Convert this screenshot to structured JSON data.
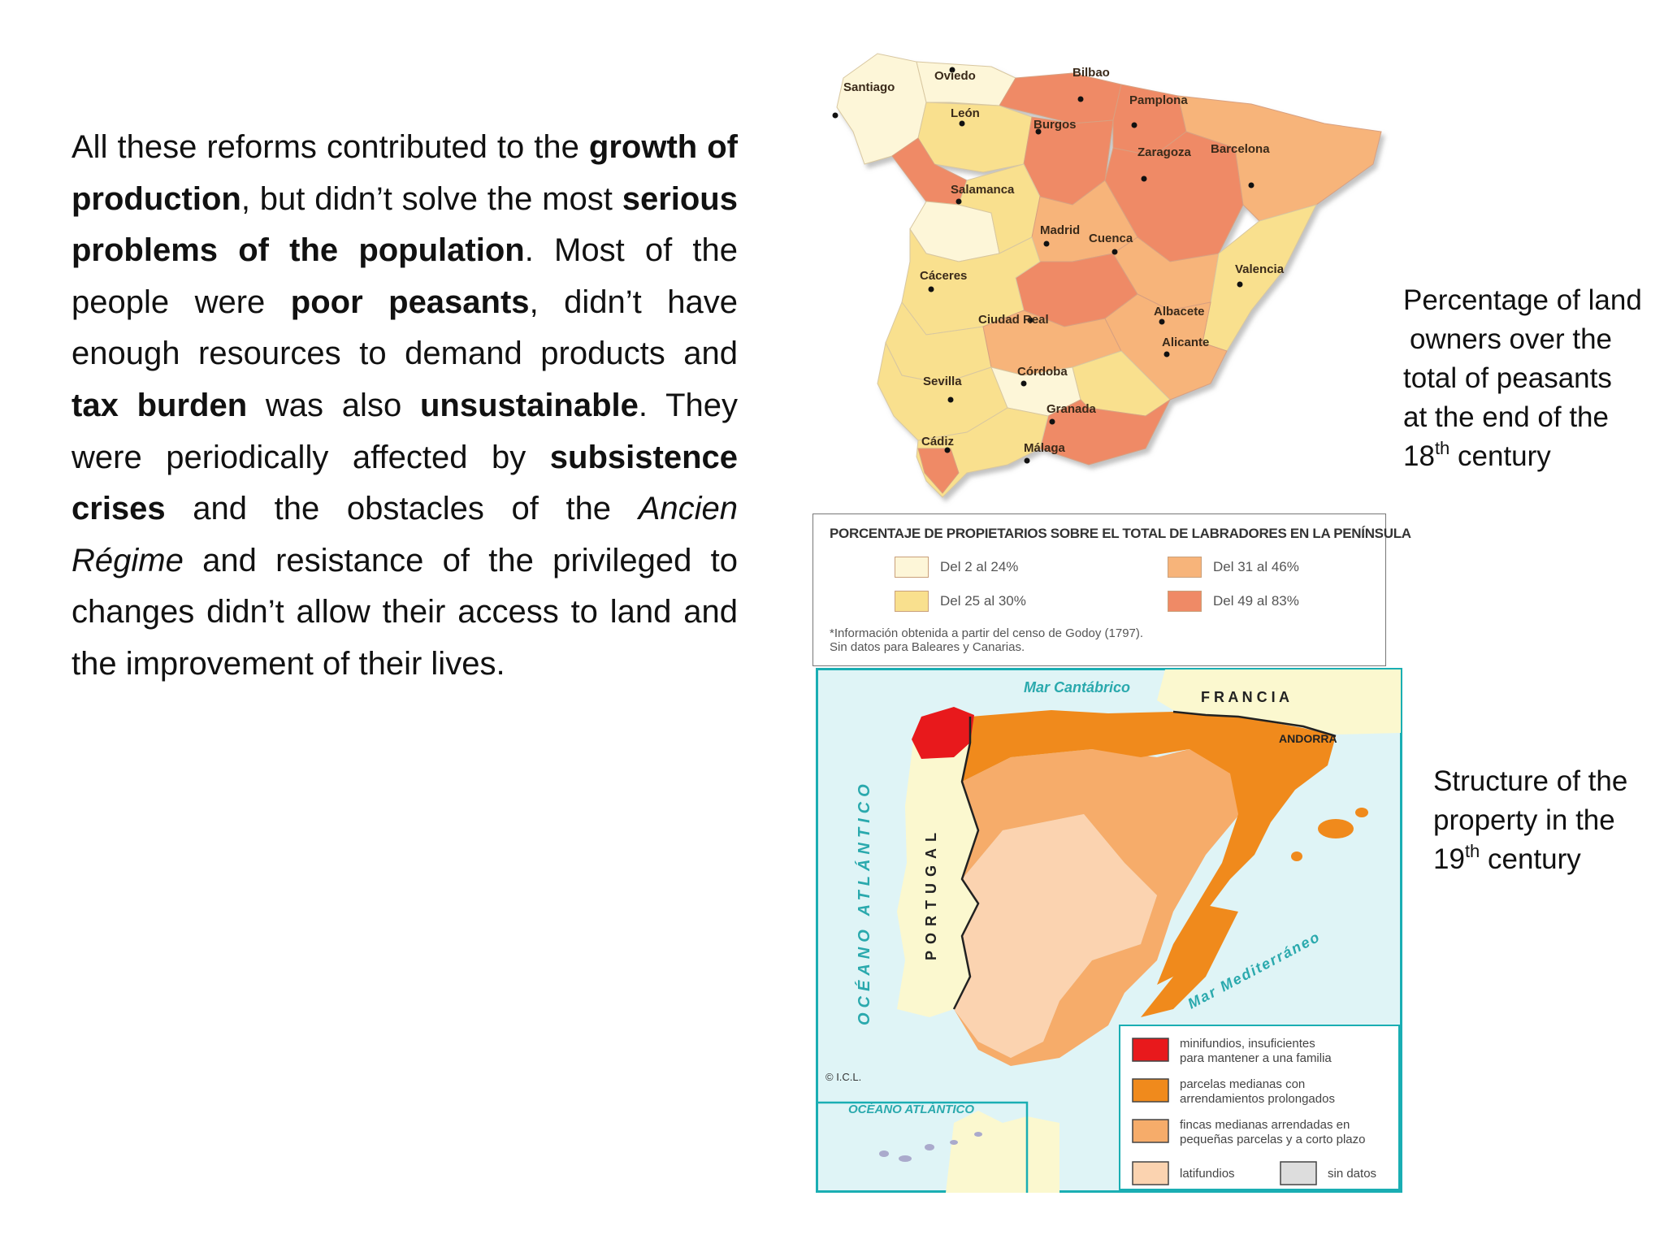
{
  "text_block": {
    "segments": [
      {
        "t": "All these reforms contributed to the ",
        "s": "n"
      },
      {
        "t": "growth of production",
        "s": "b"
      },
      {
        "t": ", but didn’t solve the most ",
        "s": "n"
      },
      {
        "t": "serious problems of the population",
        "s": "b"
      },
      {
        "t": ". Most of the people were ",
        "s": "n"
      },
      {
        "t": "poor peasants",
        "s": "b"
      },
      {
        "t": ", didn’t have enough resources to demand products and ",
        "s": "n"
      },
      {
        "t": "tax burden",
        "s": "b"
      },
      {
        "t": " was also ",
        "s": "n"
      },
      {
        "t": "unsustainable",
        "s": "b"
      },
      {
        "t": ". They were periodically affected by ",
        "s": "n"
      },
      {
        "t": "subsistence crises",
        "s": "b"
      },
      {
        "t": " and the obstacles of the ",
        "s": "n"
      },
      {
        "t": "Ancien Régime",
        "s": "i"
      },
      {
        "t": " and resistance of the privileged to changes didn’t allow their access to land and the improvement of their lives.",
        "s": "n"
      }
    ]
  },
  "caption1": {
    "line1": "Percentage of land",
    "line2": "owners over the",
    "line3": "total of peasants",
    "line4": "at the end of the",
    "num": "18",
    "sup": "th",
    "rest": " century"
  },
  "caption2": {
    "line1": "Structure of the",
    "line2": "property in the",
    "num": "19",
    "sup": "th",
    "rest": " century"
  },
  "map1": {
    "cities": [
      "Santiago",
      "Oviedo",
      "Bilbao",
      "León",
      "Burgos",
      "Pamplona",
      "Zaragoza",
      "Barcelona",
      "Salamanca",
      "Madrid",
      "Cuenca",
      "Cáceres",
      "Valencia",
      "Ciudad Real",
      "Albacete",
      "Alicante",
      "Sevilla",
      "Córdoba",
      "Granada",
      "Cádiz",
      "Málaga"
    ],
    "colors": {
      "c1": "#fdf6d8",
      "c2": "#f9e08e",
      "c3": "#f7b47a",
      "c4": "#ef8a66"
    }
  },
  "legend1": {
    "title": "PORCENTAJE DE PROPIETARIOS SOBRE EL TOTAL DE LABRADORES EN LA PENÍNSULA",
    "items": [
      {
        "label": "Del 2 al 24%",
        "color": "#fdf6d8"
      },
      {
        "label": "Del 25 al 30%",
        "color": "#f9e08e"
      },
      {
        "label": "Del 31 al 46%",
        "color": "#f7b47a"
      },
      {
        "label": "Del 49 al 83%",
        "color": "#ef8a66"
      }
    ],
    "note1": "*Información obtenida a partir del censo de Godoy (1797).",
    "note2": "Sin datos para Baleares y Canarias."
  },
  "map2": {
    "labels": {
      "mar_cantabrico": "Mar Cantábrico",
      "francia": "F R A N C I A",
      "andorra": "ANDORRA",
      "oceano": "OCÉANO ATLÁNTICO",
      "portugal": "PORTUGAL",
      "mediterraneo": "Mar Mediterráneo",
      "oceano_inset": "OCÉANO ATLÁNTICO",
      "copyright": "© I.C.L."
    },
    "legend": [
      {
        "line1": "minifundios, insuficientes",
        "line2": "para mantener a una familia",
        "color": "#e8191c"
      },
      {
        "line1": "parcelas medianas con",
        "line2": "arrendamientos prolongados",
        "color": "#f08a1c"
      },
      {
        "line1": "fincas medianas arrendadas en",
        "line2": "pequeñas parcelas y a corto plazo",
        "color": "#f6ac6a"
      },
      {
        "line1": "latifundios",
        "line2": "",
        "color": "#fbd3b0"
      },
      {
        "line1": "sin datos",
        "line2": "",
        "color": "#dddddd"
      }
    ],
    "colors": {
      "sea": "#dff4f6",
      "foreign": "#fbf8cf",
      "frame": "#1aaeb3"
    }
  }
}
